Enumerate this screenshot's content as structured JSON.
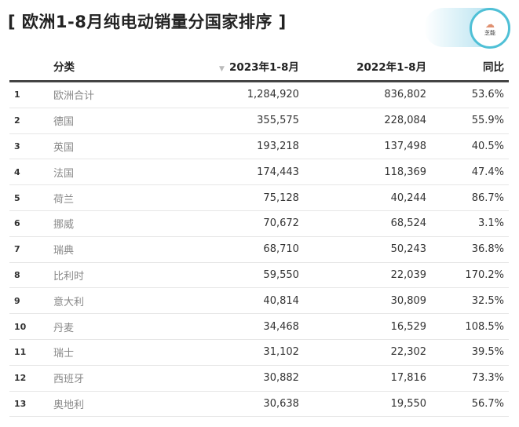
{
  "title": "[ 欧洲1-8月纯电动销量分国家排序 ]",
  "logo_text": "芝能",
  "columns": [
    "",
    "分类",
    "2023年1-8月",
    "2022年1-8月",
    "同比"
  ],
  "sort_icon": "triangle-down-icon",
  "rows": [
    [
      "1",
      "欧洲合计",
      "1,284,920",
      "836,802",
      "53.6%"
    ],
    [
      "2",
      "德国",
      "355,575",
      "228,084",
      "55.9%"
    ],
    [
      "3",
      "英国",
      "193,218",
      "137,498",
      "40.5%"
    ],
    [
      "4",
      "法国",
      "174,443",
      "118,369",
      "47.4%"
    ],
    [
      "5",
      "荷兰",
      "75,128",
      "40,244",
      "86.7%"
    ],
    [
      "6",
      "挪威",
      "70,672",
      "68,524",
      "3.1%"
    ],
    [
      "7",
      "瑞典",
      "68,710",
      "50,243",
      "36.8%"
    ],
    [
      "8",
      "比利时",
      "59,550",
      "22,039",
      "170.2%"
    ],
    [
      "9",
      "意大利",
      "40,814",
      "30,809",
      "32.5%"
    ],
    [
      "10",
      "丹麦",
      "34,468",
      "16,529",
      "108.5%"
    ],
    [
      "11",
      "瑞士",
      "31,102",
      "22,302",
      "39.5%"
    ],
    [
      "12",
      "西班牙",
      "30,882",
      "17,816",
      "73.3%"
    ],
    [
      "13",
      "奥地利",
      "30,638",
      "19,550",
      "56.7%"
    ]
  ]
}
